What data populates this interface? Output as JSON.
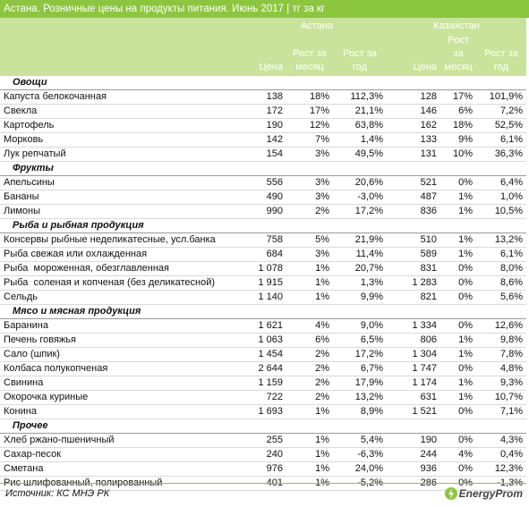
{
  "header": {
    "title": "Астана. Розничные цены на продукты питания. Июнь 2017 | тг за кг"
  },
  "group_headers": [
    "Астана",
    "Казахстан"
  ],
  "column_headers": [
    "Цена",
    "Рост за месяц",
    "Рост за год",
    "Цена",
    "Рост за месяц",
    "Рост за год"
  ],
  "sections": [
    {
      "name": "Овощи",
      "rows": [
        [
          "Капуста белокочанная",
          "138",
          "18%",
          "112,3%",
          "128",
          "17%",
          "101,9%"
        ],
        [
          "Свекла",
          "172",
          "17%",
          "21,1%",
          "146",
          "6%",
          "7,2%"
        ],
        [
          "Картофель",
          "190",
          "12%",
          "63,8%",
          "162",
          "18%",
          "52,5%"
        ],
        [
          "Морковь",
          "142",
          "7%",
          "1,4%",
          "133",
          "9%",
          "6,1%"
        ],
        [
          "Лук репчатый",
          "154",
          "3%",
          "49,5%",
          "131",
          "10%",
          "36,3%"
        ]
      ]
    },
    {
      "name": "Фрукты",
      "rows": [
        [
          "Апельсины",
          "556",
          "3%",
          "20,6%",
          "521",
          "0%",
          "6,4%"
        ],
        [
          "Бананы",
          "490",
          "3%",
          "-3,0%",
          "487",
          "1%",
          "1,0%"
        ],
        [
          "Лимоны",
          "990",
          "2%",
          "17,2%",
          "836",
          "1%",
          "10,5%"
        ]
      ]
    },
    {
      "name": "Рыба и рыбная продукция",
      "rows": [
        [
          "Консервы рыбные неделикатесные, усл.банка",
          "758",
          "5%",
          "21,9%",
          "510",
          "1%",
          "13,2%"
        ],
        [
          "Рыба свежая или охлажденная",
          "684",
          "3%",
          "11,4%",
          "589",
          "1%",
          "6,1%"
        ],
        [
          "Рыба  мороженная, обезглавленная",
          "1 078",
          "1%",
          "20,7%",
          "831",
          "0%",
          "8,0%"
        ],
        [
          "Рыба  соленая и копченая (без деликатесной)",
          "1 915",
          "1%",
          "1,3%",
          "1 283",
          "0%",
          "8,6%"
        ],
        [
          "Сельдь",
          "1 140",
          "1%",
          "9,9%",
          "821",
          "0%",
          "5,6%"
        ]
      ]
    },
    {
      "name": "Мясо и мясная продукция",
      "rows": [
        [
          "Баранина",
          "1 621",
          "4%",
          "9,0%",
          "1 334",
          "0%",
          "12,6%"
        ],
        [
          "Печень говяжья",
          "1 063",
          "6%",
          "6,5%",
          "806",
          "1%",
          "9,8%"
        ],
        [
          "Сало (шпик)",
          "1 454",
          "2%",
          "17,2%",
          "1 304",
          "1%",
          "7,8%"
        ],
        [
          "Колбаса полукопченая",
          "2 644",
          "2%",
          "6,7%",
          "1 747",
          "0%",
          "4,8%"
        ],
        [
          "Свинина",
          "1 159",
          "2%",
          "17,9%",
          "1 174",
          "1%",
          "9,3%"
        ],
        [
          "Окорочка куриные",
          "722",
          "2%",
          "13,2%",
          "631",
          "1%",
          "10,7%"
        ],
        [
          "Конина",
          "1 693",
          "1%",
          "8,9%",
          "1 521",
          "0%",
          "7,1%"
        ]
      ]
    },
    {
      "name": "Прочее",
      "rows": [
        [
          "Хлеб ржано-пшеничный",
          "255",
          "1%",
          "5,4%",
          "190",
          "0%",
          "4,3%"
        ],
        [
          "Сахар-песок",
          "240",
          "1%",
          "-6,3%",
          "244",
          "4%",
          "0,4%"
        ],
        [
          "Сметана",
          "976",
          "1%",
          "24,0%",
          "936",
          "0%",
          "12,3%"
        ],
        [
          "Рис шлифованный, полированный",
          "401",
          "1%",
          "-5,2%",
          "286",
          "0%",
          "-1,3%"
        ]
      ]
    }
  ],
  "footer": {
    "source": "Источник: КС МНЭ РК",
    "logo": "EnergyProm"
  }
}
